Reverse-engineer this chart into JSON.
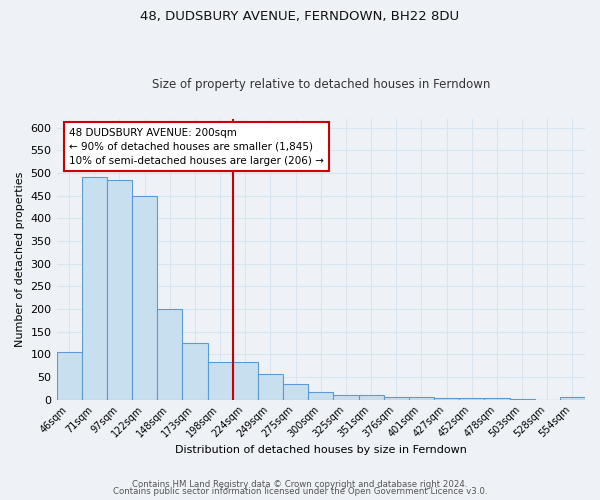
{
  "title": "48, DUDSBURY AVENUE, FERNDOWN, BH22 8DU",
  "subtitle": "Size of property relative to detached houses in Ferndown",
  "xlabel": "Distribution of detached houses by size in Ferndown",
  "ylabel": "Number of detached properties",
  "bar_labels": [
    "46sqm",
    "71sqm",
    "97sqm",
    "122sqm",
    "148sqm",
    "173sqm",
    "198sqm",
    "224sqm",
    "249sqm",
    "275sqm",
    "300sqm",
    "325sqm",
    "351sqm",
    "376sqm",
    "401sqm",
    "427sqm",
    "452sqm",
    "478sqm",
    "503sqm",
    "528sqm",
    "554sqm"
  ],
  "bar_values": [
    105,
    490,
    485,
    450,
    200,
    125,
    83,
    83,
    57,
    35,
    17,
    10,
    10,
    5,
    5,
    3,
    3,
    3,
    1,
    0,
    5
  ],
  "bar_color": "#c8dff0",
  "bar_edge_color": "#5b9bd5",
  "vline_x": 7,
  "vline_color": "#cc0000",
  "annotation_title": "48 DUDSBURY AVENUE: 200sqm",
  "annotation_line1": "← 90% of detached houses are smaller (1,845)",
  "annotation_line2": "10% of semi-detached houses are larger (206) →",
  "annotation_box_color": "#ffffff",
  "annotation_box_edge": "#cc0000",
  "footer_line1": "Contains HM Land Registry data © Crown copyright and database right 2024.",
  "footer_line2": "Contains public sector information licensed under the Open Government Licence v3.0.",
  "ylim": [
    0,
    620
  ],
  "yticks": [
    0,
    50,
    100,
    150,
    200,
    250,
    300,
    350,
    400,
    450,
    500,
    550,
    600
  ],
  "background_color": "#eef2f7",
  "plot_background": "#eef2f7",
  "grid_color": "#d8e4f0",
  "title_fontsize": 9.5,
  "subtitle_fontsize": 8.5,
  "tick_fontsize": 7,
  "axis_label_fontsize": 8
}
